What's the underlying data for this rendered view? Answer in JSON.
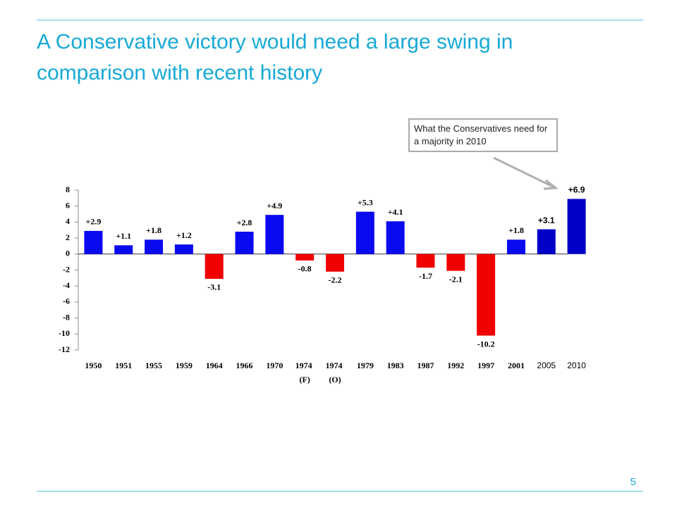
{
  "chart_data": {
    "type": "bar",
    "title": "A Conservative victory would need a large swing in comparison with recent history",
    "annotation": "What the Conservatives need for a majority in 2010",
    "categories": [
      "1950",
      "1951",
      "1955",
      "1959",
      "1964",
      "1966",
      "1970",
      "1974 (F)",
      "1974 (O)",
      "1979",
      "1983",
      "1987",
      "1992",
      "1997",
      "2001",
      "2005",
      "2010"
    ],
    "values": [
      2.9,
      1.1,
      1.8,
      1.2,
      -3.1,
      2.8,
      4.9,
      -0.8,
      -2.2,
      5.3,
      4.1,
      -1.7,
      -2.1,
      -10.2,
      1.8,
      3.1,
      6.9
    ],
    "value_labels": [
      "+2.9",
      "+1.1",
      "+1.8",
      "+1.2",
      "-3.1",
      "+2.8",
      "+4.9",
      "-0.8",
      "-2.2",
      "+5.3",
      "+4.1",
      "-1.7",
      "-2.1",
      "-10.2",
      "+1.8",
      "+3.1",
      "+6.9"
    ],
    "colors": [
      "#0a0af0",
      "#0a0af0",
      "#0a0af0",
      "#0a0af0",
      "#f00000",
      "#0a0af0",
      "#0a0af0",
      "#f00000",
      "#f00000",
      "#0a0af0",
      "#0a0af0",
      "#f00000",
      "#f00000",
      "#f00000",
      "#0a0af0",
      "#0000c8",
      "#0000c8"
    ],
    "ylim": [
      -12,
      8
    ],
    "yticks": [
      -12,
      -10,
      -8,
      -6,
      -4,
      -2,
      0,
      2,
      4,
      6,
      8
    ]
  },
  "page_number": "5"
}
